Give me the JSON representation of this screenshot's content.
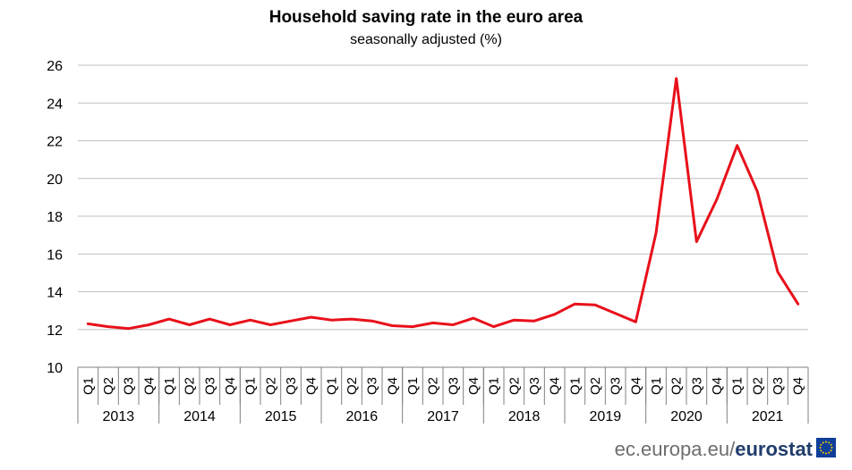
{
  "chart_data": {
    "type": "line",
    "title": "Household  saving  rate in the euro area",
    "subtitle": "seasonally adjusted (%)",
    "xlabel": "",
    "ylabel": "",
    "ylim": [
      10,
      26
    ],
    "yticks": [
      "10",
      "12",
      "14",
      "16",
      "18",
      "20",
      "22",
      "24",
      "26"
    ],
    "grid": true,
    "quarters": [
      "Q1",
      "Q2",
      "Q3",
      "Q4"
    ],
    "years": [
      "2013",
      "2014",
      "2015",
      "2016",
      "2017",
      "2018",
      "2019",
      "2020",
      "2021"
    ],
    "series": [
      {
        "name": "Household saving rate",
        "color": "#e8101a",
        "values": [
          12.3,
          12.15,
          12.05,
          12.25,
          12.55,
          12.25,
          12.55,
          12.25,
          12.5,
          12.25,
          12.45,
          12.65,
          12.5,
          12.55,
          12.45,
          12.2,
          12.15,
          12.35,
          12.25,
          12.6,
          12.15,
          12.5,
          12.45,
          12.8,
          13.35,
          13.3,
          12.85,
          12.4,
          17.1,
          25.3,
          16.65,
          18.9,
          21.75,
          19.3,
          15.05,
          13.35
        ]
      }
    ]
  },
  "footer": {
    "prefix": "ec.europa.eu/",
    "brand": "eurostat"
  },
  "colors": {
    "line": "#e8101a",
    "grid": "#bfbfbf",
    "axis": "#808080",
    "brand": "#1f3d6b",
    "flag_blue": "#0f3f99",
    "flag_star": "#ffcc00"
  }
}
